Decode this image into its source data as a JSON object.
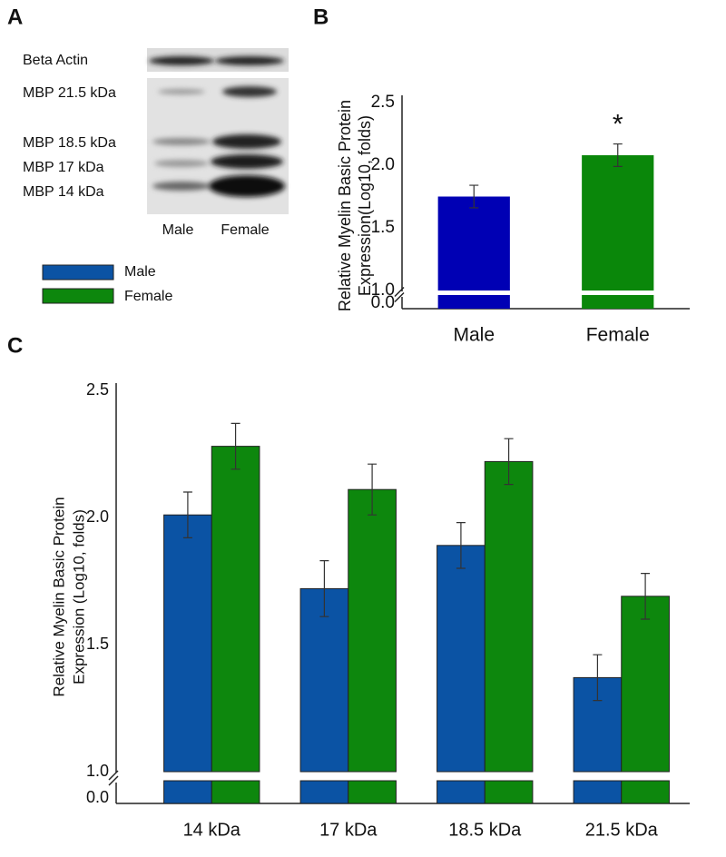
{
  "panel_labels": [
    "A",
    "B",
    "C"
  ],
  "blot": {
    "bands": [
      "Beta Actin",
      "MBP 21.5 kDa",
      "MBP 18.5 kDa",
      "MBP 17 kDa",
      "MBP 14 kDa"
    ],
    "lanes": [
      "Male",
      "Female"
    ]
  },
  "chart_data": [
    {
      "type": "bar",
      "ylabel": [
        "Relative Myelin Basic Protein",
        "Expression(Log10, folds)"
      ],
      "categories": [
        "Male",
        "Female"
      ],
      "values": [
        1.75,
        2.08
      ],
      "errors": [
        0.09,
        0.09
      ],
      "colors": [
        "#0000b4",
        "#0a870a"
      ],
      "annotation": "*",
      "ylim": [
        0,
        2.5
      ],
      "ybreak": [
        0,
        1
      ],
      "yticks": [
        {
          "value": 0,
          "label": "0.0"
        },
        {
          "value": 1,
          "label": "1.0"
        },
        1.5,
        {
          "value": 2,
          "label": "2.0"
        },
        2.5
      ],
      "grid": false
    },
    {
      "type": "grouped-bar",
      "ylabel": [
        "Relative Myelin Basic Protein",
        "Expression (Log10, folds)"
      ],
      "categories": [
        "14 kDa",
        "17 kDa",
        "18.5 kDa",
        "21.5 kDa"
      ],
      "series": [
        {
          "name": "Male",
          "color": "#0b53a4",
          "values": [
            2.01,
            1.72,
            1.89,
            1.37
          ],
          "errors": [
            0.09,
            0.11,
            0.09,
            0.09
          ]
        },
        {
          "name": "Female",
          "color": "#0d870d",
          "values": [
            2.28,
            2.11,
            2.22,
            1.69
          ],
          "errors": [
            0.09,
            0.1,
            0.09,
            0.09
          ]
        }
      ],
      "ylim": [
        0,
        2.5
      ],
      "ybreak": [
        0,
        1
      ],
      "yticks": [
        {
          "value": 0,
          "label": "0.0"
        },
        {
          "value": 1,
          "label": "1.0"
        },
        1.5,
        {
          "value": 2,
          "label": "2.0"
        },
        2.5
      ],
      "grid": false
    }
  ]
}
